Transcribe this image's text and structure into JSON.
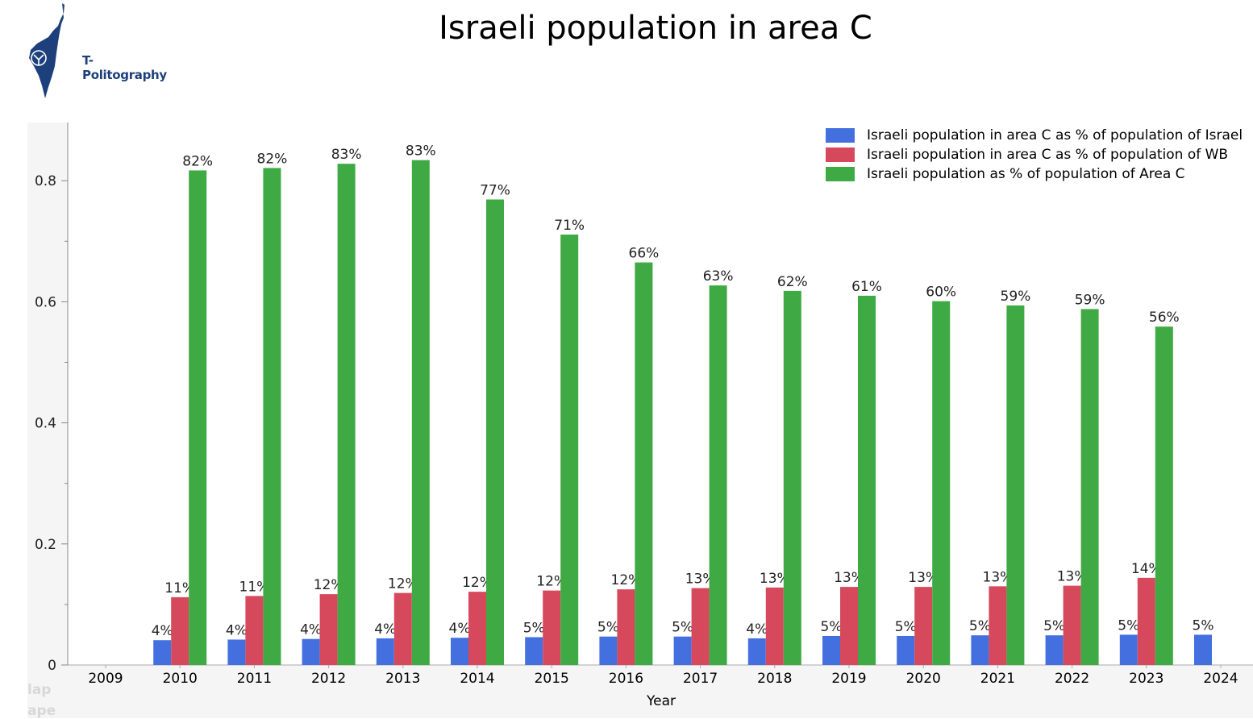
{
  "title": "Israeli population in area C",
  "logo": {
    "text": "T-Politography"
  },
  "watermark": [
    "lap",
    "ape"
  ],
  "colors": {
    "blue": "#4470df",
    "red": "#d6495c",
    "green": "#3faa43"
  },
  "chart_data": {
    "type": "bar",
    "title": "Israeli population in area C",
    "xlabel": "Year",
    "ylabel": "",
    "ylim": [
      0,
      0.88
    ],
    "yticks": [
      "0",
      "0.2",
      "0.4",
      "0.6",
      "0.8"
    ],
    "ytick_values": [
      0,
      0.2,
      0.4,
      0.6,
      0.8
    ],
    "grid": false,
    "legend_position": "top-right",
    "categories": [
      "2009",
      "2010",
      "2011",
      "2012",
      "2013",
      "2014",
      "2015",
      "2016",
      "2017",
      "2018",
      "2019",
      "2020",
      "2021",
      "2022",
      "2023",
      "2024"
    ],
    "series": [
      {
        "name": "Israeli population in area C as % of population of Israel",
        "color": "#4470df",
        "values": [
          null,
          0.041,
          0.042,
          0.043,
          0.044,
          0.045,
          0.046,
          0.047,
          0.047,
          0.044,
          0.048,
          0.048,
          0.049,
          0.049,
          0.05,
          0.05
        ],
        "labels": [
          "",
          "4%",
          "4%",
          "4%",
          "4%",
          "4%",
          "5%",
          "5%",
          "5%",
          "4%",
          "5%",
          "5%",
          "5%",
          "5%",
          "5%",
          "5%"
        ]
      },
      {
        "name": "Israeli population in area C as % of population of WB",
        "color": "#d6495c",
        "values": [
          null,
          0.112,
          0.114,
          0.117,
          0.119,
          0.121,
          0.123,
          0.125,
          0.127,
          0.128,
          0.129,
          0.129,
          0.13,
          0.131,
          0.144,
          null
        ],
        "labels": [
          "",
          "11%",
          "11%",
          "12%",
          "12%",
          "12%",
          "12%",
          "12%",
          "13%",
          "13%",
          "13%",
          "13%",
          "13%",
          "13%",
          "14%",
          ""
        ]
      },
      {
        "name": "Israeli population as % of population of Area C",
        "color": "#3faa43",
        "values": [
          null,
          0.817,
          0.821,
          0.828,
          0.834,
          0.769,
          0.711,
          0.665,
          0.627,
          0.618,
          0.61,
          0.601,
          0.594,
          0.588,
          0.559,
          null
        ],
        "labels": [
          "",
          "82%",
          "82%",
          "83%",
          "83%",
          "77%",
          "71%",
          "66%",
          "63%",
          "62%",
          "61%",
          "60%",
          "59%",
          "59%",
          "56%",
          ""
        ]
      }
    ]
  }
}
